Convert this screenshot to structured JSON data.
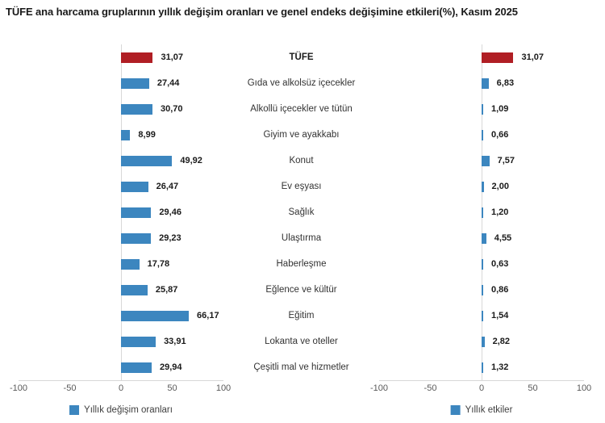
{
  "title": "TÜFE ana harcama gruplarının yıllık değişim oranları ve genel endeks değişimine etkileri(%), Kasım 2025",
  "colors": {
    "bar_blue": "#3C86BF",
    "bar_red": "#B01E24",
    "axis_line": "#D8D8D8",
    "tick_text": "#595959",
    "category_text": "#333333",
    "value_text": "#1A1A1A"
  },
  "chart_data": [
    {
      "type": "bar",
      "orientation": "horizontal",
      "legend": "Yıllık değişim oranları",
      "legend_position": "bottom",
      "grid": false,
      "xlim": [
        -100,
        100
      ],
      "xticks": [
        "-100",
        "-50",
        "0",
        "50",
        "100"
      ],
      "highlight_index": 0,
      "categories": [
        "TÜFE",
        "Gıda ve alkolsüz içecekler",
        "Alkollü içecekler ve tütün",
        "Giyim ve ayakkabı",
        "Konut",
        "Ev eşyası",
        "Sağlık",
        "Ulaştırma",
        "Haberleşme",
        "Eğlence ve kültür",
        "Eğitim",
        "Lokanta ve oteller",
        "Çeşitli mal ve hizmetler"
      ],
      "values": [
        31.07,
        27.44,
        30.7,
        8.99,
        49.92,
        26.47,
        29.46,
        29.23,
        17.78,
        25.87,
        66.17,
        33.91,
        29.94
      ],
      "value_labels": [
        "31,07",
        "27,44",
        "30,70",
        "8,99",
        "49,92",
        "26,47",
        "29,46",
        "29,23",
        "17,78",
        "25,87",
        "66,17",
        "33,91",
        "29,94"
      ]
    },
    {
      "type": "bar",
      "orientation": "horizontal",
      "legend": "Yıllık etkiler",
      "legend_position": "bottom",
      "grid": false,
      "xlim": [
        -100,
        100
      ],
      "xticks": [
        "-100",
        "-50",
        "0",
        "50",
        "100"
      ],
      "highlight_index": 0,
      "categories": [
        "TÜFE",
        "Gıda ve alkolsüz içecekler",
        "Alkollü içecekler ve tütün",
        "Giyim ve ayakkabı",
        "Konut",
        "Ev eşyası",
        "Sağlık",
        "Ulaştırma",
        "Haberleşme",
        "Eğlence ve kültür",
        "Eğitim",
        "Lokanta ve oteller",
        "Çeşitli mal ve hizmetler"
      ],
      "values": [
        31.07,
        6.83,
        1.09,
        0.66,
        7.57,
        2.0,
        1.2,
        4.55,
        0.63,
        0.86,
        1.54,
        2.82,
        1.32
      ],
      "value_labels": [
        "31,07",
        "6,83",
        "1,09",
        "0,66",
        "7,57",
        "2,00",
        "1,20",
        "4,55",
        "0,63",
        "0,86",
        "1,54",
        "2,82",
        "1,32"
      ]
    }
  ]
}
